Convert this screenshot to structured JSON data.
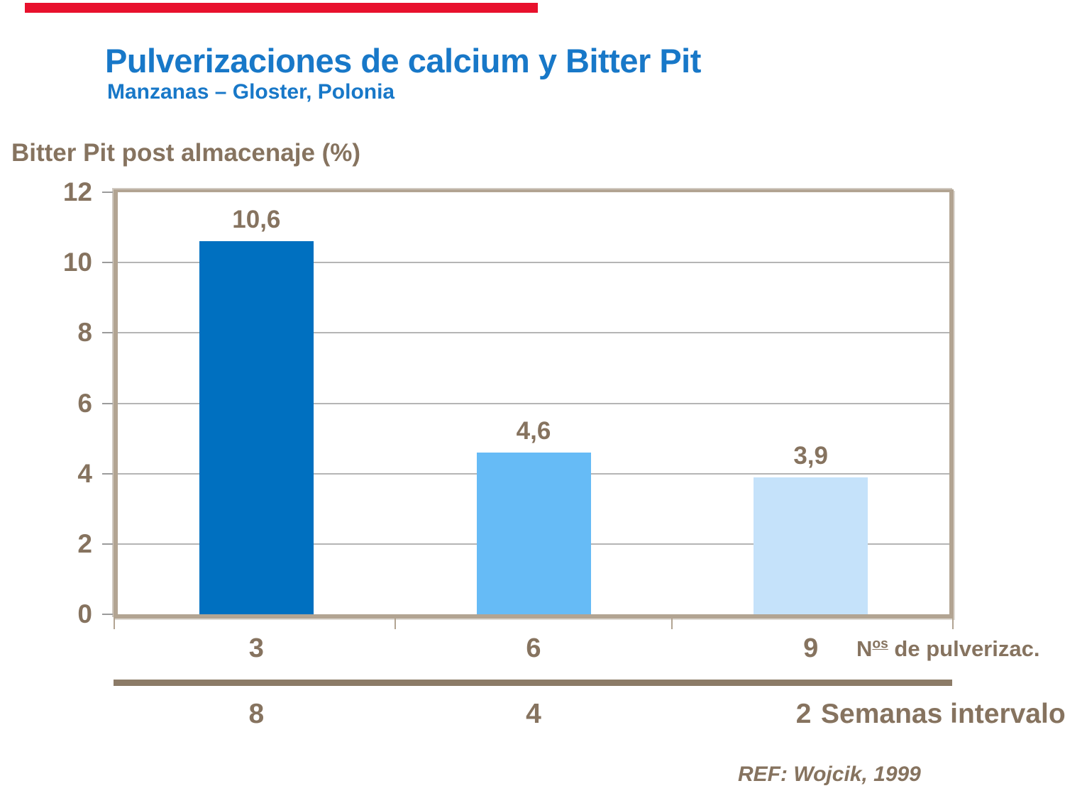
{
  "decor": {
    "accent_bar_color": "#e8112d"
  },
  "header": {
    "title_color": "#1878c8"
  },
  "chart_data": {
    "type": "bar",
    "title": "Pulverizaciones de calcium y Bitter Pit",
    "subtitle": "Manzanas – Gloster, Polonia",
    "ylabel": "Bitter Pit post almacenaje (%)",
    "ylim": [
      0,
      12
    ],
    "yticks": [
      12,
      10,
      8,
      6,
      4,
      2,
      0
    ],
    "grid": "horizontal",
    "legend": "none",
    "categories": [
      "3",
      "6",
      "9"
    ],
    "x_axis_label": {
      "prefix": "N",
      "sup": "os",
      "suffix": " de pulverizac."
    },
    "x2_categories": [
      "8",
      "4",
      "2"
    ],
    "x2_axis_label": "Semanas intervalo",
    "series": [
      {
        "name": "Bitter Pit post almacenaje (%)",
        "values": [
          10.6,
          4.6,
          3.9
        ],
        "value_labels": [
          "10,6",
          "4,6",
          "3,9"
        ],
        "bar_colors": [
          "#0070c0",
          "#66bbf6",
          "#c5e2fa"
        ]
      }
    ],
    "reference": "REF: Wojcik, 1999",
    "text_color": "#86735f",
    "axis_color": "#b2a492",
    "separator_color": "#8c7b67",
    "gridline_color": "#b5b5b5",
    "tick_color": "#9b9b9b"
  }
}
